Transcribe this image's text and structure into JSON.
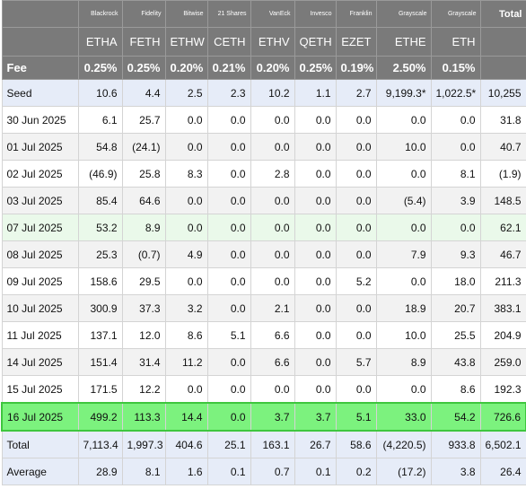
{
  "header": {
    "issuers": [
      "",
      "Blackrock",
      "Fidelity",
      "Bitwise",
      "21 Shares",
      "VanEck",
      "Invesco",
      "Franklin",
      "Grayscale",
      "Grayscale",
      "Total"
    ],
    "tickers": [
      "",
      "ETHA",
      "FETH",
      "ETHW",
      "CETH",
      "ETHV",
      "QETH",
      "EZET",
      "ETHE",
      "ETH",
      ""
    ],
    "fee": [
      "Fee",
      "0.25%",
      "0.25%",
      "0.20%",
      "0.21%",
      "0.20%",
      "0.25%",
      "0.19%",
      "2.50%",
      "0.15%",
      ""
    ]
  },
  "rows": [
    {
      "label": "Seed",
      "cells": [
        "10.6",
        "4.4",
        "2.5",
        "2.3",
        "10.2",
        "1.1",
        "2.7",
        "9,199.3*",
        "1,022.5*",
        "10,255"
      ],
      "style": "blue"
    },
    {
      "label": "30 Jun 2025",
      "cells": [
        "6.1",
        "25.7",
        "0.0",
        "0.0",
        "0.0",
        "0.0",
        "0.0",
        "0.0",
        "0.0",
        "31.8"
      ],
      "style": "white"
    },
    {
      "label": "01 Jul 2025",
      "cells": [
        "54.8",
        "(24.1)",
        "0.0",
        "0.0",
        "0.0",
        "0.0",
        "0.0",
        "10.0",
        "0.0",
        "40.7"
      ],
      "style": "grey"
    },
    {
      "label": "02 Jul 2025",
      "cells": [
        "(46.9)",
        "25.8",
        "8.3",
        "0.0",
        "2.8",
        "0.0",
        "0.0",
        "0.0",
        "8.1",
        "(1.9)"
      ],
      "style": "white"
    },
    {
      "label": "03 Jul 2025",
      "cells": [
        "85.4",
        "64.6",
        "0.0",
        "0.0",
        "0.0",
        "0.0",
        "0.0",
        "(5.4)",
        "3.9",
        "148.5"
      ],
      "style": "grey"
    },
    {
      "label": "07 Jul 2025",
      "cells": [
        "53.2",
        "8.9",
        "0.0",
        "0.0",
        "0.0",
        "0.0",
        "0.0",
        "0.0",
        "0.0",
        "62.1"
      ],
      "style": "mint"
    },
    {
      "label": "08 Jul 2025",
      "cells": [
        "25.3",
        "(0.7)",
        "4.9",
        "0.0",
        "0.0",
        "0.0",
        "0.0",
        "7.9",
        "9.3",
        "46.7"
      ],
      "style": "grey"
    },
    {
      "label": "09 Jul 2025",
      "cells": [
        "158.6",
        "29.5",
        "0.0",
        "0.0",
        "0.0",
        "0.0",
        "5.2",
        "0.0",
        "18.0",
        "211.3"
      ],
      "style": "white"
    },
    {
      "label": "10 Jul 2025",
      "cells": [
        "300.9",
        "37.3",
        "3.2",
        "0.0",
        "2.1",
        "0.0",
        "0.0",
        "18.9",
        "20.7",
        "383.1"
      ],
      "style": "grey"
    },
    {
      "label": "11 Jul 2025",
      "cells": [
        "137.1",
        "12.0",
        "8.6",
        "5.1",
        "6.6",
        "0.0",
        "0.0",
        "10.0",
        "25.5",
        "204.9"
      ],
      "style": "white"
    },
    {
      "label": "14 Jul 2025",
      "cells": [
        "151.4",
        "31.4",
        "11.2",
        "0.0",
        "6.6",
        "0.0",
        "5.7",
        "8.9",
        "43.8",
        "259.0"
      ],
      "style": "grey"
    },
    {
      "label": "15 Jul 2025",
      "cells": [
        "171.5",
        "12.2",
        "0.0",
        "0.0",
        "0.0",
        "0.0",
        "0.0",
        "0.0",
        "8.6",
        "192.3"
      ],
      "style": "white"
    },
    {
      "label": "16 Jul 2025",
      "cells": [
        "499.2",
        "113.3",
        "14.4",
        "0.0",
        "3.7",
        "3.7",
        "5.1",
        "33.0",
        "54.2",
        "726.6"
      ],
      "style": "highlight"
    },
    {
      "label": "Total",
      "cells": [
        "7,113.4",
        "1,997.3",
        "404.6",
        "25.1",
        "163.1",
        "26.7",
        "58.6",
        "(4,220.5)",
        "933.8",
        "6,502.1"
      ],
      "style": "blue"
    },
    {
      "label": "Average",
      "cells": [
        "28.9",
        "8.1",
        "1.6",
        "0.1",
        "0.7",
        "0.1",
        "0.2",
        "(17.2)",
        "3.8",
        "26.4"
      ],
      "style": "blue"
    }
  ],
  "colors": {
    "header_bg": "#7a7a7a",
    "highlight": "#7cf27e",
    "negative": "#cc2222",
    "blue_row": "#e6ecf8"
  }
}
